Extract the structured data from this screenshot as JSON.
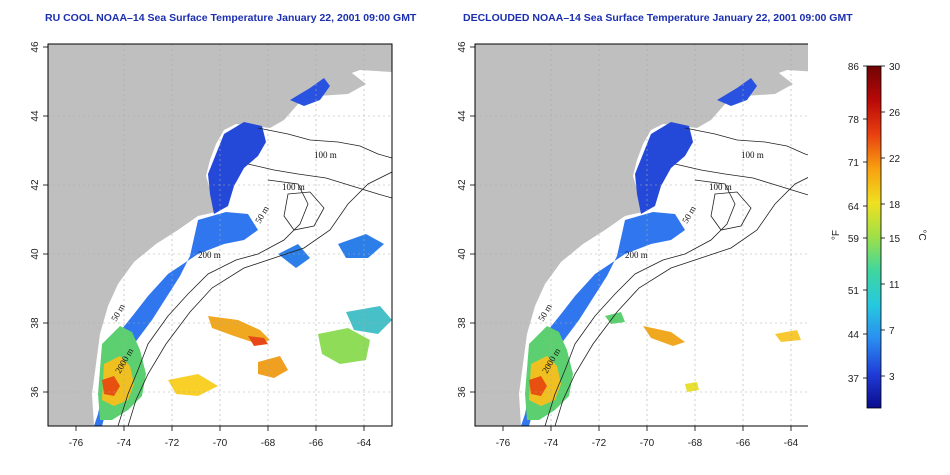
{
  "maps": [
    {
      "title": "RU COOL NOAA–14 Sea Surface Temperature January 22, 2001 09:00 GMT",
      "x_ticks": [
        "-76",
        "-74",
        "-72",
        "-70",
        "-68",
        "-66",
        "-64"
      ],
      "y_ticks": [
        "46",
        "44",
        "42",
        "40",
        "38",
        "36"
      ],
      "contour_labels": [
        "100 m",
        "100 m",
        "50 m",
        "200 m",
        "50 m",
        "2000 m"
      ]
    },
    {
      "title": "DECLOUDED NOAA–14 Sea Surface Temperature January 22, 2001 09:00 GMT",
      "x_ticks": [
        "-76",
        "-74",
        "-72",
        "-70",
        "-68",
        "-66",
        "-64"
      ],
      "y_ticks": [
        "46",
        "44",
        "42",
        "40",
        "38",
        "36"
      ],
      "contour_labels": [
        "100 m",
        "100 m",
        "50 m",
        "200 m",
        "50 m",
        "2000 m"
      ]
    }
  ],
  "colorbar": {
    "f_ticks": [
      "86",
      "78",
      "71",
      "64",
      "59",
      "51",
      "44",
      "37"
    ],
    "c_ticks": [
      "30",
      "26",
      "22",
      "18",
      "15",
      "11",
      "7",
      "3"
    ],
    "f_label": "°F",
    "c_label": "°C",
    "colors": [
      "#0a0c8c",
      "#1f3cd8",
      "#2a8cf0",
      "#26c8e0",
      "#3ed6a0",
      "#9ee048",
      "#f0e020",
      "#f8a010",
      "#e84010",
      "#b80808",
      "#700404"
    ]
  }
}
